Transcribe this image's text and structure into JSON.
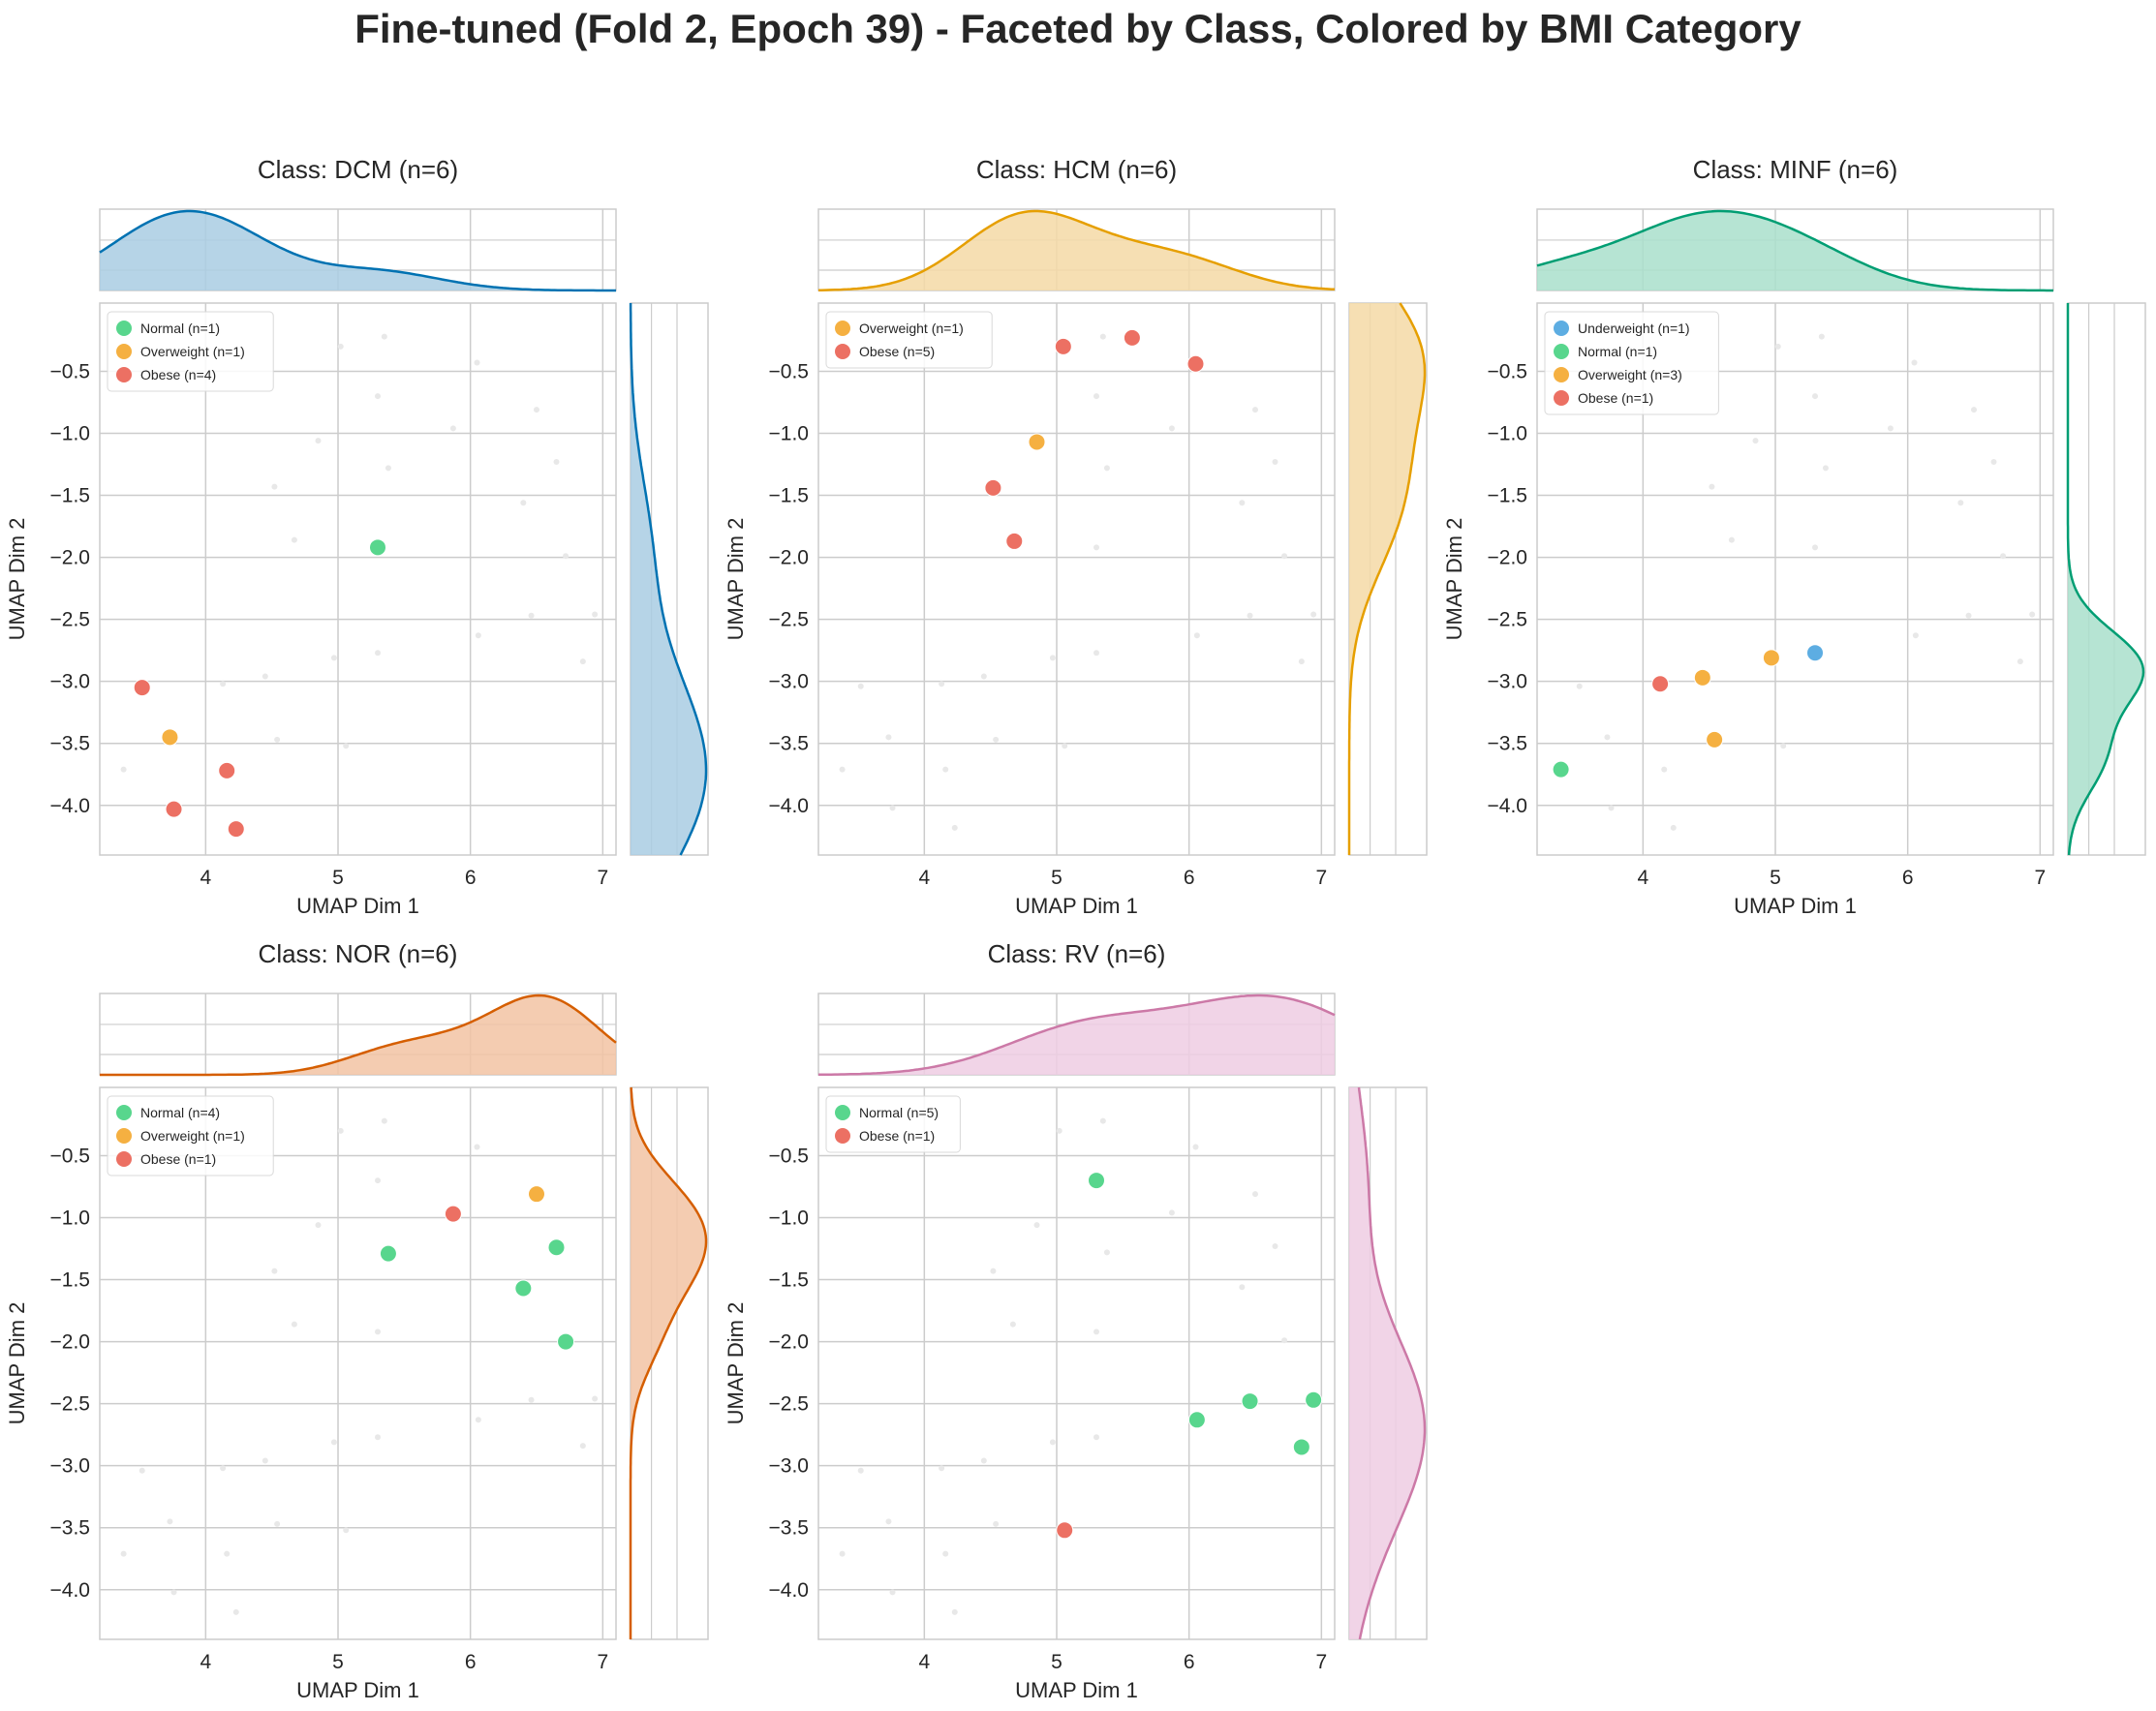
{
  "figure_title": "Fine-tuned (Fold 2, Epoch 39) - Faceted by Class, Colored by BMI Category",
  "colors": {
    "Underweight": "#5DADE2",
    "Normal": "#58D68D",
    "Overweight": "#F5B041",
    "Obese": "#EC7063",
    "background_points": "#e8e8e8",
    "grid": "#cccccc",
    "frame": "#cccccc"
  },
  "chart_data": [
    {
      "type": "scatter",
      "title": "Class: DCM (n=6)",
      "xlabel": "UMAP Dim 1",
      "ylabel": "UMAP Dim 2",
      "xlim": [
        3.2,
        7.1
      ],
      "ylim": [
        -4.4,
        0.05
      ],
      "xticks": [
        4,
        5,
        6,
        7
      ],
      "yticks": [
        -0.5,
        -1.0,
        -1.5,
        -2.0,
        -2.5,
        -3.0,
        -3.5,
        -4.0
      ],
      "kde_color": "#0072B2",
      "kde_fill": "#A9CCE3",
      "grid": true,
      "legend_position": "upper-left",
      "series": [
        {
          "name": "Normal (n=1)",
          "category": "Normal",
          "points": [
            [
              5.3,
              -1.92
            ]
          ]
        },
        {
          "name": "Overweight (n=1)",
          "category": "Overweight",
          "points": [
            [
              3.73,
              -3.45
            ]
          ]
        },
        {
          "name": "Obese (n=4)",
          "category": "Obese",
          "points": [
            [
              3.52,
              -3.05
            ],
            [
              4.16,
              -3.72
            ],
            [
              3.76,
              -4.03
            ],
            [
              4.23,
              -4.19
            ]
          ]
        }
      ]
    },
    {
      "type": "scatter",
      "title": "Class: HCM (n=6)",
      "xlabel": "UMAP Dim 1",
      "ylabel": "UMAP Dim 2",
      "xlim": [
        3.2,
        7.1
      ],
      "ylim": [
        -4.4,
        0.05
      ],
      "xticks": [
        4,
        5,
        6,
        7
      ],
      "yticks": [
        -0.5,
        -1.0,
        -1.5,
        -2.0,
        -2.5,
        -3.0,
        -3.5,
        -4.0
      ],
      "kde_color": "#E69F00",
      "kde_fill": "#F5D9A6",
      "grid": true,
      "legend_position": "upper-left",
      "series": [
        {
          "name": "Overweight (n=1)",
          "category": "Overweight",
          "points": [
            [
              4.85,
              -1.07
            ]
          ]
        },
        {
          "name": "Obese (n=5)",
          "category": "Obese",
          "points": [
            [
              5.05,
              -0.3
            ],
            [
              5.57,
              -0.23
            ],
            [
              6.05,
              -0.44
            ],
            [
              4.52,
              -1.44
            ],
            [
              4.68,
              -1.87
            ]
          ]
        }
      ]
    },
    {
      "type": "scatter",
      "title": "Class: MINF (n=6)",
      "xlabel": "UMAP Dim 1",
      "ylabel": "UMAP Dim 2",
      "xlim": [
        3.2,
        7.1
      ],
      "ylim": [
        -4.4,
        0.05
      ],
      "xticks": [
        4,
        5,
        6,
        7
      ],
      "yticks": [
        -0.5,
        -1.0,
        -1.5,
        -2.0,
        -2.5,
        -3.0,
        -3.5,
        -4.0
      ],
      "kde_color": "#009E73",
      "kde_fill": "#A9DFCB",
      "grid": true,
      "legend_position": "upper-left",
      "series": [
        {
          "name": "Underweight (n=1)",
          "category": "Underweight",
          "points": [
            [
              5.3,
              -2.77
            ]
          ]
        },
        {
          "name": "Normal (n=1)",
          "category": "Normal",
          "points": [
            [
              3.38,
              -3.71
            ]
          ]
        },
        {
          "name": "Overweight (n=3)",
          "category": "Overweight",
          "points": [
            [
              4.45,
              -2.97
            ],
            [
              4.97,
              -2.81
            ],
            [
              4.54,
              -3.47
            ]
          ]
        },
        {
          "name": "Obese (n=1)",
          "category": "Obese",
          "points": [
            [
              4.13,
              -3.02
            ]
          ]
        }
      ]
    },
    {
      "type": "scatter",
      "title": "Class: NOR (n=6)",
      "xlabel": "UMAP Dim 1",
      "ylabel": "UMAP Dim 2",
      "xlim": [
        3.2,
        7.1
      ],
      "ylim": [
        -4.4,
        0.05
      ],
      "xticks": [
        4,
        5,
        6,
        7
      ],
      "yticks": [
        -0.5,
        -1.0,
        -1.5,
        -2.0,
        -2.5,
        -3.0,
        -3.5,
        -4.0
      ],
      "kde_color": "#D55E00",
      "kde_fill": "#F2C3A3",
      "grid": true,
      "legend_position": "upper-left",
      "series": [
        {
          "name": "Normal (n=4)",
          "category": "Normal",
          "points": [
            [
              5.38,
              -1.29
            ],
            [
              6.65,
              -1.24
            ],
            [
              6.4,
              -1.57
            ],
            [
              6.72,
              -2.0
            ]
          ]
        },
        {
          "name": "Overweight (n=1)",
          "category": "Overweight",
          "points": [
            [
              6.5,
              -0.81
            ]
          ]
        },
        {
          "name": "Obese (n=1)",
          "category": "Obese",
          "points": [
            [
              5.87,
              -0.97
            ]
          ]
        }
      ]
    },
    {
      "type": "scatter",
      "title": "Class: RV (n=6)",
      "xlabel": "UMAP Dim 1",
      "ylabel": "UMAP Dim 2",
      "xlim": [
        3.2,
        7.1
      ],
      "ylim": [
        -4.4,
        0.05
      ],
      "xticks": [
        4,
        5,
        6,
        7
      ],
      "yticks": [
        -0.5,
        -1.0,
        -1.5,
        -2.0,
        -2.5,
        -3.0,
        -3.5,
        -4.0
      ],
      "kde_color": "#CC79A7",
      "kde_fill": "#EFCDE3",
      "grid": true,
      "legend_position": "upper-left",
      "series": [
        {
          "name": "Normal (n=5)",
          "category": "Normal",
          "points": [
            [
              5.3,
              -0.7
            ],
            [
              6.06,
              -2.63
            ],
            [
              6.46,
              -2.48
            ],
            [
              6.94,
              -2.47
            ],
            [
              6.85,
              -2.85
            ]
          ]
        },
        {
          "name": "Obese (n=1)",
          "category": "Obese",
          "points": [
            [
              5.06,
              -3.52
            ]
          ]
        }
      ]
    }
  ],
  "background_points": [
    [
      5.35,
      -0.22
    ],
    [
      5.02,
      -0.3
    ],
    [
      6.05,
      -0.43
    ],
    [
      6.5,
      -0.81
    ],
    [
      5.3,
      -0.7
    ],
    [
      4.85,
      -1.06
    ],
    [
      5.87,
      -0.96
    ],
    [
      5.38,
      -1.28
    ],
    [
      6.65,
      -1.23
    ],
    [
      4.52,
      -1.43
    ],
    [
      6.4,
      -1.56
    ],
    [
      4.67,
      -1.86
    ],
    [
      5.3,
      -1.92
    ],
    [
      6.72,
      -1.99
    ],
    [
      6.46,
      -2.47
    ],
    [
      6.94,
      -2.46
    ],
    [
      6.06,
      -2.63
    ],
    [
      5.3,
      -2.77
    ],
    [
      4.97,
      -2.81
    ],
    [
      6.85,
      -2.84
    ],
    [
      4.45,
      -2.96
    ],
    [
      4.13,
      -3.02
    ],
    [
      3.52,
      -3.04
    ],
    [
      4.54,
      -3.47
    ],
    [
      5.06,
      -3.52
    ],
    [
      3.73,
      -3.45
    ],
    [
      3.38,
      -3.71
    ],
    [
      4.16,
      -3.71
    ],
    [
      3.76,
      -4.02
    ],
    [
      4.23,
      -4.18
    ]
  ]
}
